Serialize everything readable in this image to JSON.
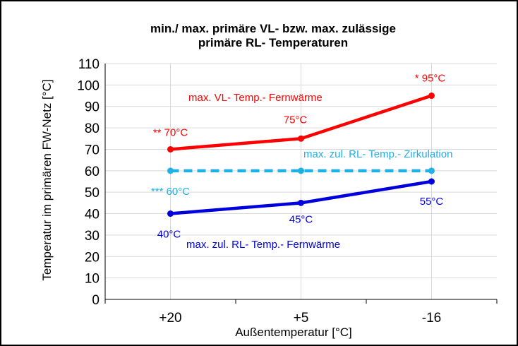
{
  "chart_data": {
    "type": "line",
    "title_line1": "min./ max. primäre VL- bzw.  max. zulässige",
    "title_line2": "primäre  RL- Temperaturen",
    "xlabel": "Außentemperatur [°C]",
    "ylabel": "Temperatur im primären FW-Netz [°C]",
    "categories": [
      "+20",
      "+5",
      "-16"
    ],
    "ylim": [
      0,
      110
    ],
    "yticks": [
      0,
      10,
      20,
      30,
      40,
      50,
      60,
      70,
      80,
      90,
      100,
      110
    ],
    "grid": true,
    "series": [
      {
        "name": "max. VL- Temp.- Fernwärme",
        "values": [
          70,
          75,
          95
        ],
        "color": "#ff0000",
        "dashed": false
      },
      {
        "name": "max. zul. RL- Temp.- Zirkulation",
        "values": [
          60,
          60,
          60
        ],
        "color": "#1fb0e6",
        "dashed": true
      },
      {
        "name": "max. zul. RL- Temp.- Fernwärme",
        "values": [
          40,
          45,
          55
        ],
        "color": "#0000dd",
        "dashed": false
      }
    ],
    "data_labels": [
      {
        "series": 0,
        "point": 0,
        "text": "** 70°C"
      },
      {
        "series": 0,
        "point": 1,
        "text": "75°C"
      },
      {
        "series": 0,
        "point": 2,
        "text": "* 95°C"
      },
      {
        "series": 1,
        "point": 0,
        "text": "*** 60°C"
      },
      {
        "series": 2,
        "point": 0,
        "text": "40°C"
      },
      {
        "series": 2,
        "point": 1,
        "text": "45°C"
      },
      {
        "series": 2,
        "point": 2,
        "text": "55°C"
      }
    ]
  }
}
